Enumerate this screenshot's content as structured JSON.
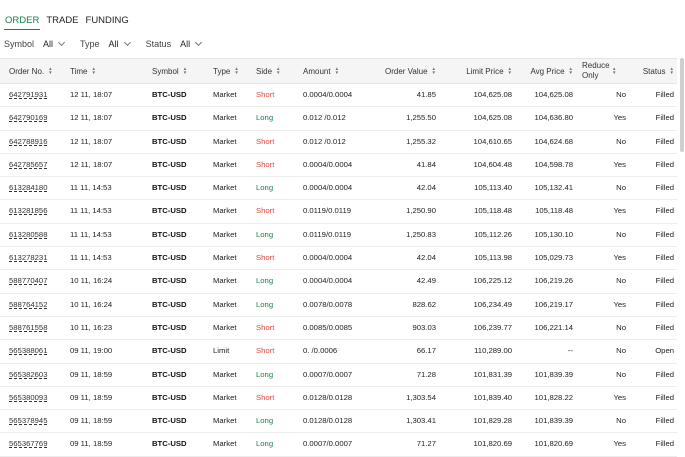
{
  "tabs": [
    {
      "label": "ORDER",
      "active": true
    },
    {
      "label": "TRADE",
      "active": false
    },
    {
      "label": "FUNDING",
      "active": false
    }
  ],
  "filters": {
    "symbol": {
      "label": "Symbol",
      "value": "All"
    },
    "type": {
      "label": "Type",
      "value": "All"
    },
    "status": {
      "label": "Status",
      "value": "All"
    }
  },
  "sort_icon": "sort-icon",
  "colors": {
    "accent": "#14824a",
    "long": "#14824a",
    "short": "#e0473c"
  },
  "columns": [
    "Order No.",
    "Time",
    "Symbol",
    "Type",
    "Side",
    "Amount",
    "Order Value",
    "Limit Price",
    "Avg Price",
    "Reduce Only",
    "Status"
  ],
  "rows": [
    {
      "order_no": "642791931",
      "time": "12 11, 18:07",
      "symbol": "BTC-USD",
      "type": "Market",
      "side": "Short",
      "amount": "0.0004/0.0004",
      "order_value": "41.85",
      "limit_price": "104,625.08",
      "avg_price": "104,625.08",
      "reduce_only": "No",
      "status": "Filled"
    },
    {
      "order_no": "642790169",
      "time": "12 11, 18:07",
      "symbol": "BTC-USD",
      "type": "Market",
      "side": "Long",
      "amount": "0.012 /0.012",
      "order_value": "1,255.50",
      "limit_price": "104,625.08",
      "avg_price": "104,636.80",
      "reduce_only": "Yes",
      "status": "Filled"
    },
    {
      "order_no": "642788916",
      "time": "12 11, 18:07",
      "symbol": "BTC-USD",
      "type": "Market",
      "side": "Short",
      "amount": "0.012 /0.012",
      "order_value": "1,255.32",
      "limit_price": "104,610.65",
      "avg_price": "104,624.68",
      "reduce_only": "No",
      "status": "Filled"
    },
    {
      "order_no": "642785657",
      "time": "12 11, 18:07",
      "symbol": "BTC-USD",
      "type": "Market",
      "side": "Short",
      "amount": "0.0004/0.0004",
      "order_value": "41.84",
      "limit_price": "104,604.48",
      "avg_price": "104,598.78",
      "reduce_only": "Yes",
      "status": "Filled"
    },
    {
      "order_no": "613284180",
      "time": "11 11, 14:53",
      "symbol": "BTC-USD",
      "type": "Market",
      "side": "Long",
      "amount": "0.0004/0.0004",
      "order_value": "42.04",
      "limit_price": "105,113.40",
      "avg_price": "105,132.41",
      "reduce_only": "No",
      "status": "Filled"
    },
    {
      "order_no": "613281856",
      "time": "11 11, 14:53",
      "symbol": "BTC-USD",
      "type": "Market",
      "side": "Short",
      "amount": "0.0119/0.0119",
      "order_value": "1,250.90",
      "limit_price": "105,118.48",
      "avg_price": "105,118.48",
      "reduce_only": "Yes",
      "status": "Filled"
    },
    {
      "order_no": "613280588",
      "time": "11 11, 14:53",
      "symbol": "BTC-USD",
      "type": "Market",
      "side": "Long",
      "amount": "0.0119/0.0119",
      "order_value": "1,250.83",
      "limit_price": "105,112.26",
      "avg_price": "105,130.10",
      "reduce_only": "No",
      "status": "Filled"
    },
    {
      "order_no": "613278231",
      "time": "11 11, 14:53",
      "symbol": "BTC-USD",
      "type": "Market",
      "side": "Short",
      "amount": "0.0004/0.0004",
      "order_value": "42.04",
      "limit_price": "105,113.98",
      "avg_price": "105,029.73",
      "reduce_only": "Yes",
      "status": "Filled"
    },
    {
      "order_no": "588770407",
      "time": "10 11, 16:24",
      "symbol": "BTC-USD",
      "type": "Market",
      "side": "Long",
      "amount": "0.0004/0.0004",
      "order_value": "42.49",
      "limit_price": "106,225.12",
      "avg_price": "106,219.26",
      "reduce_only": "No",
      "status": "Filled"
    },
    {
      "order_no": "588764152",
      "time": "10 11, 16:24",
      "symbol": "BTC-USD",
      "type": "Market",
      "side": "Long",
      "amount": "0.0078/0.0078",
      "order_value": "828.62",
      "limit_price": "106,234.49",
      "avg_price": "106,219.17",
      "reduce_only": "Yes",
      "status": "Filled"
    },
    {
      "order_no": "588761558",
      "time": "10 11, 16:23",
      "symbol": "BTC-USD",
      "type": "Market",
      "side": "Short",
      "amount": "0.0085/0.0085",
      "order_value": "903.03",
      "limit_price": "106,239.77",
      "avg_price": "106,221.14",
      "reduce_only": "No",
      "status": "Filled"
    },
    {
      "order_no": "565388061",
      "time": "09 11, 19:00",
      "symbol": "BTC-USD",
      "type": "Limit",
      "side": "Short",
      "amount": "0.     /0.0006",
      "order_value": "66.17",
      "limit_price": "110,289.00",
      "avg_price": "--",
      "reduce_only": "No",
      "status": "Open"
    },
    {
      "order_no": "565382603",
      "time": "09 11, 18:59",
      "symbol": "BTC-USD",
      "type": "Market",
      "side": "Long",
      "amount": "0.0007/0.0007",
      "order_value": "71.28",
      "limit_price": "101,831.39",
      "avg_price": "101,839.39",
      "reduce_only": "No",
      "status": "Filled"
    },
    {
      "order_no": "565380093",
      "time": "09 11, 18:59",
      "symbol": "BTC-USD",
      "type": "Market",
      "side": "Short",
      "amount": "0.0128/0.0128",
      "order_value": "1,303.54",
      "limit_price": "101,839.40",
      "avg_price": "101,828.22",
      "reduce_only": "Yes",
      "status": "Filled"
    },
    {
      "order_no": "565378945",
      "time": "09 11, 18:59",
      "symbol": "BTC-USD",
      "type": "Market",
      "side": "Long",
      "amount": "0.0128/0.0128",
      "order_value": "1,303.41",
      "limit_price": "101,829.28",
      "avg_price": "101,839.39",
      "reduce_only": "No",
      "status": "Filled"
    },
    {
      "order_no": "565367769",
      "time": "09 11, 18:59",
      "symbol": "BTC-USD",
      "type": "Market",
      "side": "Long",
      "amount": "0.0007/0.0007",
      "order_value": "71.27",
      "limit_price": "101,820.69",
      "avg_price": "101,820.69",
      "reduce_only": "Yes",
      "status": "Filled"
    }
  ]
}
